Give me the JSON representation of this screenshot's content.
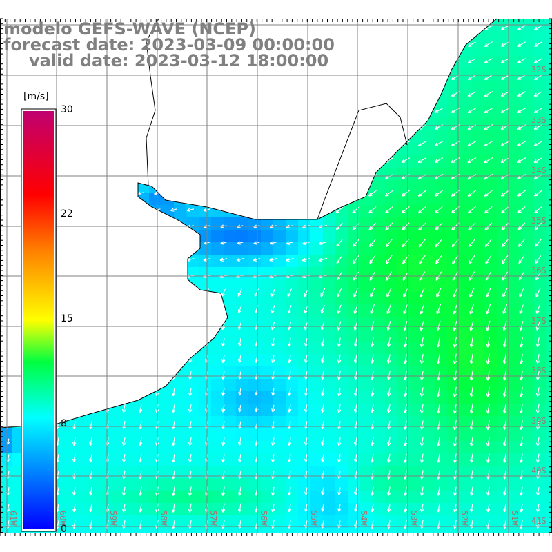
{
  "title": {
    "line1": "modelo GEFS-WAVE (NCEP)",
    "line2": "forecast date: 2023-03-09 00:00:00",
    "line3": "valid date: 2023-03-12 18:00:00"
  },
  "colorbar": {
    "unit": "[m/s]",
    "ticks": [
      "30",
      "22",
      "15",
      "8",
      "0"
    ],
    "tick_values": [
      30,
      22,
      15,
      8,
      0
    ],
    "range": [
      0,
      30
    ],
    "colors": [
      "#0000ff",
      "#00ffff",
      "#00ff40",
      "#ffff00",
      "#ff8000",
      "#ff0000",
      "#c00070"
    ]
  },
  "map": {
    "lat_labels": [
      "32S",
      "33S",
      "34S",
      "35S",
      "36S",
      "37S",
      "38S",
      "39S",
      "40S",
      "41S"
    ],
    "lon_labels": [
      "61W",
      "60W",
      "59W",
      "58W",
      "57W",
      "56W",
      "55W",
      "54W",
      "53W",
      "52W",
      "51W"
    ],
    "land_color": "#ffffff",
    "arrow_color": "#ffffff",
    "grid_color": "#808080"
  }
}
